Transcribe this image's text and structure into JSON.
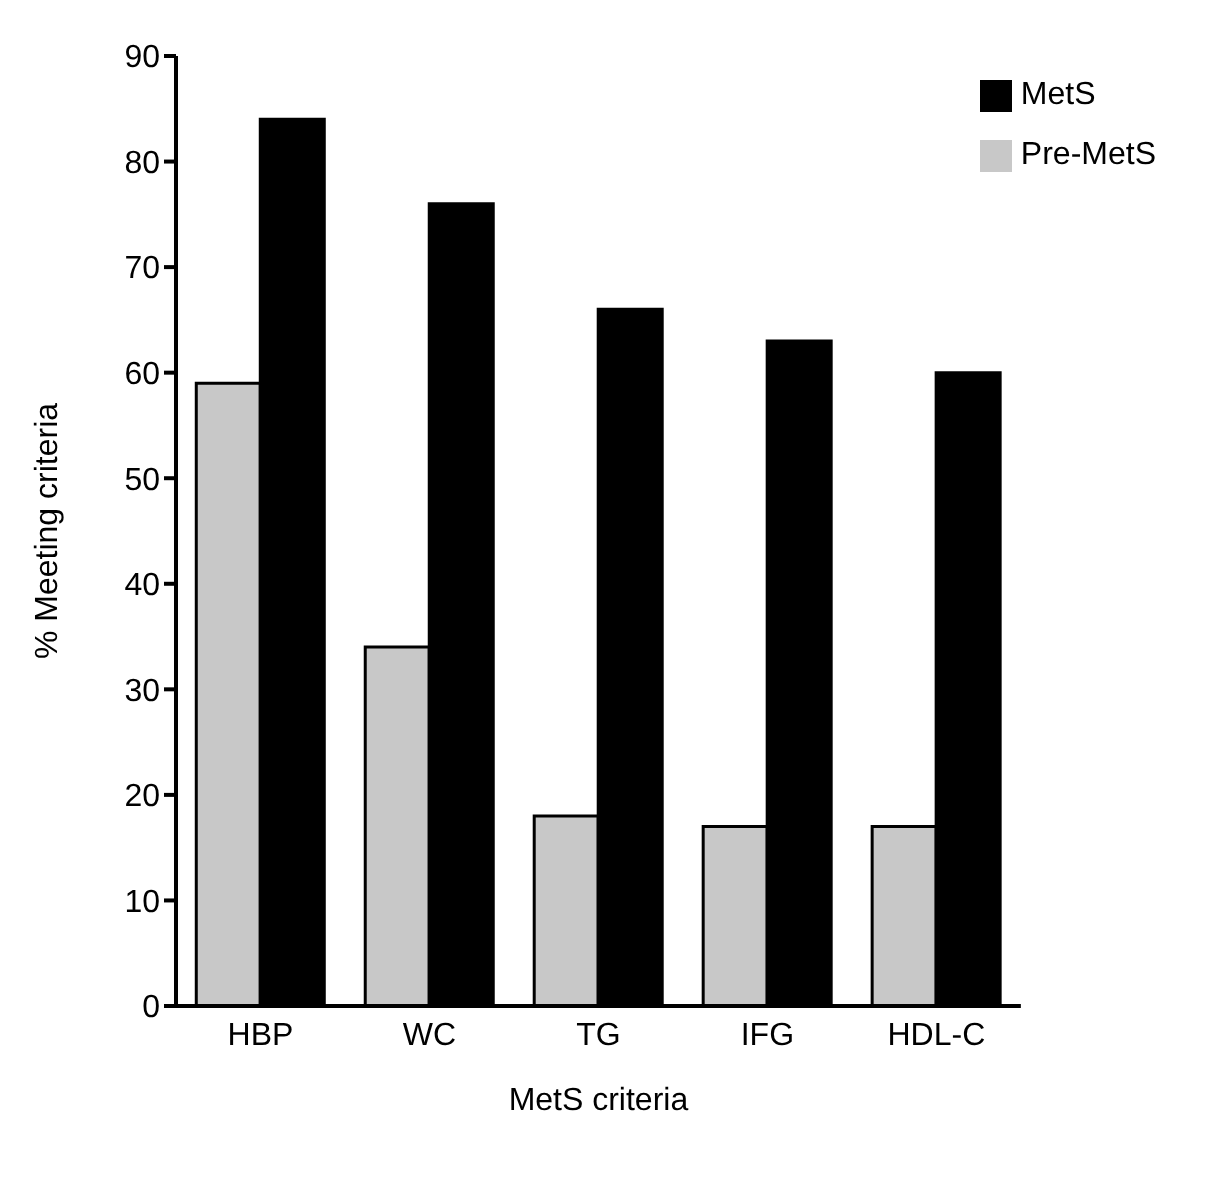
{
  "chart_data": {
    "type": "bar",
    "xlabel": "MetS criteria",
    "ylabel": "% Meeting criteria",
    "categories": [
      "HBP",
      "WC",
      "TG",
      "IFG",
      "HDL-C"
    ],
    "series": [
      {
        "name": "Pre-MetS",
        "color": "#c8c8c8",
        "values": [
          59,
          34,
          18,
          17,
          17
        ]
      },
      {
        "name": "MetS",
        "color": "#000000",
        "values": [
          84,
          76,
          66,
          63,
          60
        ]
      }
    ],
    "ylim": [
      0,
      90
    ],
    "yticks": [
      0,
      10,
      20,
      30,
      40,
      50,
      60,
      70,
      80,
      90
    ],
    "grid": false,
    "legend": "top right"
  }
}
